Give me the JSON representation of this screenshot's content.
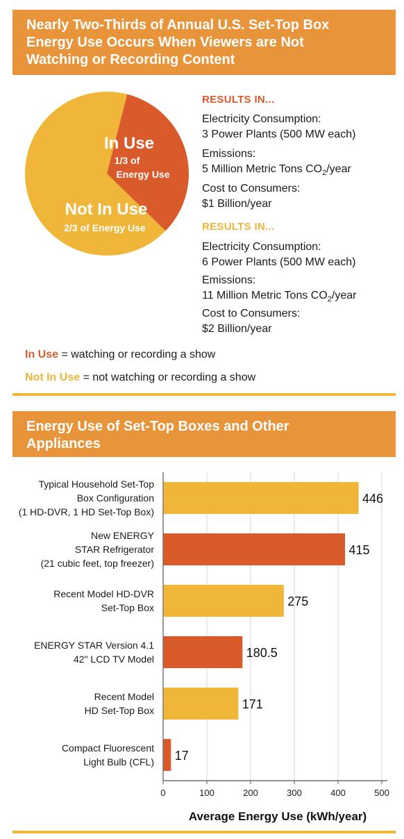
{
  "section1": {
    "title_lines": [
      "Nearly Two-Thirds of Annual U.S. Set-Top Box",
      "Energy Use Occurs When Viewers are Not",
      "Watching or Recording Content"
    ],
    "pie": {
      "slices": [
        {
          "label": "In Use",
          "sub_lines": [
            "1/3 of",
            "Energy Use"
          ],
          "fraction": 0.3333,
          "color": "#d95a2b"
        },
        {
          "label": "Not In Use",
          "sub_lines": [
            "2/3 of Energy Use"
          ],
          "fraction": 0.6667,
          "color": "#f0b63a"
        }
      ]
    },
    "results": [
      {
        "heading": "RESULTS IN...",
        "color": "#d95a2b",
        "items": [
          {
            "label": "Electricity Consumption:",
            "value": "3 Power Plants (500 MW each)"
          },
          {
            "label": "Emissions:",
            "value_prefix": "5 Million Metric Tons CO",
            "value_sub": "2",
            "value_suffix": "/year"
          },
          {
            "label": "Cost to Consumers:",
            "value": "$1 Billion/year"
          }
        ]
      },
      {
        "heading": "RESULTS IN...",
        "color": "#f0b63a",
        "items": [
          {
            "label": "Electricity Consumption:",
            "value": "6 Power Plants (500 MW each)"
          },
          {
            "label": "Emissions:",
            "value_prefix": "11 Million Metric Tons CO",
            "value_sub": "2",
            "value_suffix": "/year"
          },
          {
            "label": "Cost to Consumers:",
            "value": "$2 Billion/year"
          }
        ]
      }
    ],
    "legend": [
      {
        "term": "In Use",
        "definition": " = watching or recording a show",
        "color": "#d95a2b"
      },
      {
        "term": "Not In Use",
        "definition": " = not watching or recording a show",
        "color": "#f0b63a"
      }
    ]
  },
  "section2": {
    "title_lines": [
      "Energy Use of Set-Top Boxes and Other",
      "Appliances"
    ]
  },
  "chart_data": {
    "type": "bar",
    "orientation": "horizontal",
    "categories": [
      [
        "Typical Household Set-Top",
        "Box Configuration",
        "(1 HD-DVR, 1 HD Set-Top Box)"
      ],
      [
        "New ENERGY",
        "STAR Refrigerator",
        "(21 cubic feet, top freezer)"
      ],
      [
        "Recent Model HD-DVR",
        "Set-Top Box"
      ],
      [
        "ENERGY STAR Version 4.1",
        "42\" LCD TV Model"
      ],
      [
        "Recent Model",
        "HD Set-Top Box"
      ],
      [
        "Compact Fluorescent",
        "Light Bulb (CFL)"
      ]
    ],
    "values": [
      446,
      415,
      275,
      180.5,
      171,
      17
    ],
    "value_labels": [
      "446",
      "415",
      "275",
      "180.5",
      "171",
      "17"
    ],
    "bar_colors": [
      "#f0b63a",
      "#d95a2b",
      "#f0b63a",
      "#d95a2b",
      "#f0b63a",
      "#d95a2b"
    ],
    "xlabel": "Average Energy Use (kWh/year)",
    "xlim": [
      0,
      500
    ],
    "xticks": [
      0,
      100,
      200,
      300,
      400,
      500
    ],
    "grid": true
  }
}
